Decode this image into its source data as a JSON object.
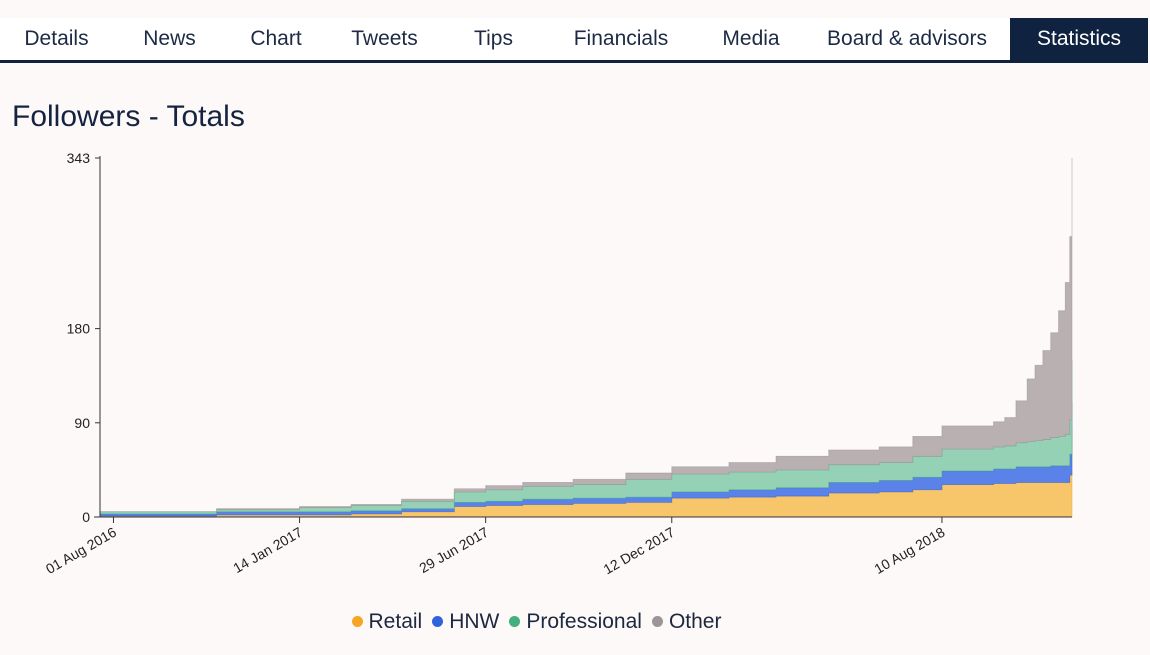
{
  "tabs": [
    {
      "label": "Details",
      "active": false
    },
    {
      "label": "News",
      "active": false
    },
    {
      "label": "Chart",
      "active": false
    },
    {
      "label": "Tweets",
      "active": false
    },
    {
      "label": "Tips",
      "active": false
    },
    {
      "label": "Financials",
      "active": false
    },
    {
      "label": "Media",
      "active": false
    },
    {
      "label": "Board & advisors",
      "active": false
    },
    {
      "label": "Statistics",
      "active": true
    }
  ],
  "chart_data": {
    "type": "area",
    "stacked": true,
    "title": "Followers - Totals",
    "xlabel": "",
    "ylabel": "",
    "x_tick_labels": [
      "01 Aug 2016",
      "14 Jan 2017",
      "29 Jun 2017",
      "12 Dec 2017",
      "10 Aug 2018"
    ],
    "y_tick_labels": [
      "0",
      "90",
      "180",
      "343"
    ],
    "ylim": [
      0,
      343
    ],
    "x": [
      "2016-07-20",
      "2016-10-15",
      "2016-11-01",
      "2017-01-14",
      "2017-03-01",
      "2017-04-15",
      "2017-06-01",
      "2017-06-29",
      "2017-08-01",
      "2017-09-15",
      "2017-11-01",
      "2017-12-12",
      "2018-02-01",
      "2018-03-15",
      "2018-05-01",
      "2018-06-15",
      "2018-07-15",
      "2018-08-10",
      "2018-09-25",
      "2018-10-05",
      "2018-10-15",
      "2018-10-25",
      "2018-11-01",
      "2018-11-08",
      "2018-11-15",
      "2018-11-22",
      "2018-11-28",
      "2018-12-02",
      "2018-12-04"
    ],
    "series": [
      {
        "name": "Retail",
        "color": "#f5a623",
        "values": [
          1,
          1,
          2,
          2,
          3,
          5,
          10,
          11,
          12,
          13,
          14,
          18,
          19,
          20,
          23,
          24,
          26,
          31,
          32,
          32,
          33,
          33,
          33,
          33,
          33,
          33,
          33,
          40,
          85
        ]
      },
      {
        "name": "HNW",
        "color": "#2f63dc",
        "values": [
          2,
          2,
          3,
          3,
          3,
          3,
          4,
          4,
          5,
          5,
          5,
          6,
          7,
          8,
          10,
          11,
          12,
          13,
          14,
          14,
          15,
          15,
          15,
          15,
          16,
          16,
          16,
          20,
          25
        ]
      },
      {
        "name": "Professional",
        "color": "#43b07e",
        "values": [
          2,
          2,
          2,
          4,
          5,
          7,
          10,
          11,
          12,
          13,
          17,
          17,
          17,
          17,
          17,
          17,
          20,
          21,
          21,
          22,
          23,
          24,
          25,
          26,
          27,
          28,
          30,
          33,
          40
        ]
      },
      {
        "name": "Other",
        "color": "#9c9499",
        "values": [
          0,
          0,
          1,
          1,
          1,
          2,
          3,
          4,
          4,
          5,
          6,
          7,
          9,
          13,
          14,
          15,
          19,
          22,
          24,
          27,
          40,
          60,
          72,
          85,
          100,
          120,
          145,
          175,
          193
        ]
      }
    ],
    "legend_position": "bottom",
    "grid": false
  }
}
